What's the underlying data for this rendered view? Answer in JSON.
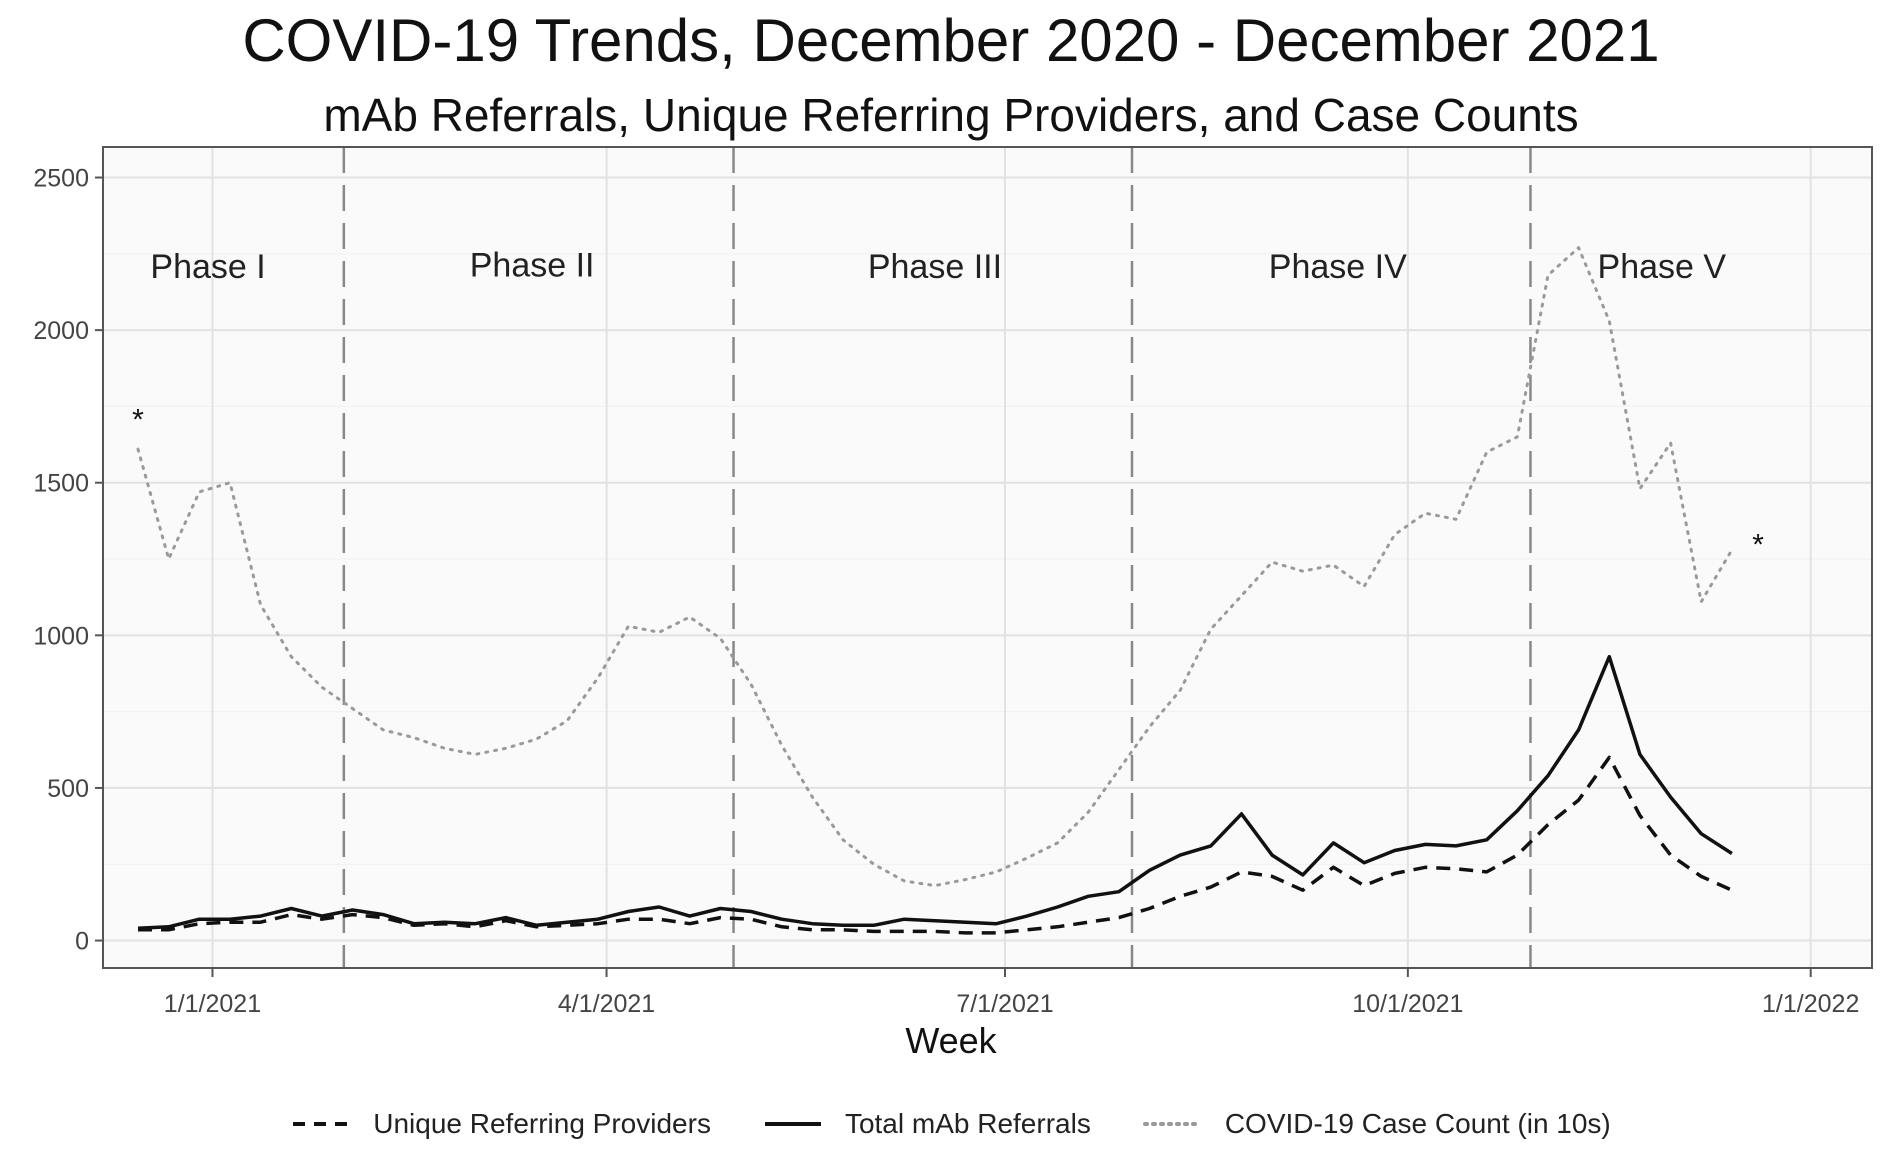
{
  "chart_data": {
    "type": "line",
    "title": "COVID-19 Trends, December 2020 - December 2021",
    "subtitle": "mAb Referrals, Unique Referring Providers, and Case Counts",
    "xlabel": "Week",
    "ylabel": "",
    "x_ticks": [
      "1/1/2021",
      "4/1/2021",
      "7/1/2021",
      "10/1/2021",
      "1/1/2022"
    ],
    "y_ticks": [
      "0",
      "500",
      "1000",
      "1500",
      "2000",
      "2500"
    ],
    "ylim": [
      -90,
      2600
    ],
    "x_start": "2020-12-07",
    "x_end": "2022-01-15",
    "phase_boundaries": [
      "2021-01-31",
      "2021-04-30",
      "2021-07-30",
      "2021-10-29"
    ],
    "phases": [
      {
        "label": "Phase I",
        "center": "2020-12-31",
        "y": 2210
      },
      {
        "label": "Phase II",
        "center": "2021-03-15",
        "y": 2215
      },
      {
        "label": "Phase III",
        "center": "2021-06-15",
        "y": 2210
      },
      {
        "label": "Phase IV",
        "center": "2021-09-15",
        "y": 2210
      },
      {
        "label": "Phase V",
        "center": "2021-11-28",
        "y": 2210
      }
    ],
    "markers": [
      {
        "label": "*",
        "date": "2020-12-15",
        "value": 1720
      },
      {
        "label": "*",
        "date": "2021-12-20",
        "value": 1310
      }
    ],
    "series": [
      {
        "name": "Unique Referring Providers",
        "style": "dashed",
        "color": "#111111",
        "points": [
          [
            "2020-12-15",
            35
          ],
          [
            "2020-12-22",
            35
          ],
          [
            "2020-12-29",
            55
          ],
          [
            "2021-01-05",
            60
          ],
          [
            "2021-01-12",
            60
          ],
          [
            "2021-01-19",
            85
          ],
          [
            "2021-01-26",
            70
          ],
          [
            "2021-02-02",
            85
          ],
          [
            "2021-02-09",
            75
          ],
          [
            "2021-02-16",
            50
          ],
          [
            "2021-02-23",
            55
          ],
          [
            "2021-03-02",
            45
          ],
          [
            "2021-03-09",
            65
          ],
          [
            "2021-03-16",
            45
          ],
          [
            "2021-03-23",
            50
          ],
          [
            "2021-03-30",
            55
          ],
          [
            "2021-04-06",
            70
          ],
          [
            "2021-04-13",
            70
          ],
          [
            "2021-04-20",
            55
          ],
          [
            "2021-04-27",
            75
          ],
          [
            "2021-05-04",
            70
          ],
          [
            "2021-05-11",
            45
          ],
          [
            "2021-05-18",
            35
          ],
          [
            "2021-05-25",
            35
          ],
          [
            "2021-06-01",
            30
          ],
          [
            "2021-06-08",
            30
          ],
          [
            "2021-06-15",
            30
          ],
          [
            "2021-06-22",
            25
          ],
          [
            "2021-06-29",
            25
          ],
          [
            "2021-07-06",
            35
          ],
          [
            "2021-07-13",
            45
          ],
          [
            "2021-07-20",
            60
          ],
          [
            "2021-07-27",
            75
          ],
          [
            "2021-08-03",
            105
          ],
          [
            "2021-08-10",
            145
          ],
          [
            "2021-08-17",
            175
          ],
          [
            "2021-08-24",
            225
          ],
          [
            "2021-08-31",
            210
          ],
          [
            "2021-09-07",
            165
          ],
          [
            "2021-09-14",
            240
          ],
          [
            "2021-09-21",
            180
          ],
          [
            "2021-09-28",
            220
          ],
          [
            "2021-10-05",
            240
          ],
          [
            "2021-10-12",
            235
          ],
          [
            "2021-10-19",
            225
          ],
          [
            "2021-10-26",
            280
          ],
          [
            "2021-11-02",
            380
          ],
          [
            "2021-11-09",
            460
          ],
          [
            "2021-11-16",
            600
          ],
          [
            "2021-11-23",
            410
          ],
          [
            "2021-11-30",
            280
          ],
          [
            "2021-12-07",
            210
          ],
          [
            "2021-12-14",
            165
          ]
        ]
      },
      {
        "name": "Total mAb Referrals",
        "style": "solid",
        "color": "#111111",
        "points": [
          [
            "2020-12-15",
            40
          ],
          [
            "2020-12-22",
            45
          ],
          [
            "2020-12-29",
            70
          ],
          [
            "2021-01-05",
            70
          ],
          [
            "2021-01-12",
            80
          ],
          [
            "2021-01-19",
            105
          ],
          [
            "2021-01-26",
            80
          ],
          [
            "2021-02-02",
            100
          ],
          [
            "2021-02-09",
            85
          ],
          [
            "2021-02-16",
            55
          ],
          [
            "2021-02-23",
            60
          ],
          [
            "2021-03-02",
            55
          ],
          [
            "2021-03-09",
            75
          ],
          [
            "2021-03-16",
            50
          ],
          [
            "2021-03-23",
            60
          ],
          [
            "2021-03-30",
            70
          ],
          [
            "2021-04-06",
            95
          ],
          [
            "2021-04-13",
            110
          ],
          [
            "2021-04-20",
            80
          ],
          [
            "2021-04-27",
            105
          ],
          [
            "2021-05-04",
            95
          ],
          [
            "2021-05-11",
            70
          ],
          [
            "2021-05-18",
            55
          ],
          [
            "2021-05-25",
            50
          ],
          [
            "2021-06-01",
            50
          ],
          [
            "2021-06-08",
            70
          ],
          [
            "2021-06-15",
            65
          ],
          [
            "2021-06-22",
            60
          ],
          [
            "2021-06-29",
            55
          ],
          [
            "2021-07-06",
            80
          ],
          [
            "2021-07-13",
            110
          ],
          [
            "2021-07-20",
            145
          ],
          [
            "2021-07-27",
            160
          ],
          [
            "2021-08-03",
            230
          ],
          [
            "2021-08-10",
            280
          ],
          [
            "2021-08-17",
            310
          ],
          [
            "2021-08-24",
            415
          ],
          [
            "2021-08-31",
            280
          ],
          [
            "2021-09-07",
            215
          ],
          [
            "2021-09-14",
            320
          ],
          [
            "2021-09-21",
            255
          ],
          [
            "2021-09-28",
            295
          ],
          [
            "2021-10-05",
            315
          ],
          [
            "2021-10-12",
            310
          ],
          [
            "2021-10-19",
            330
          ],
          [
            "2021-10-26",
            425
          ],
          [
            "2021-11-02",
            540
          ],
          [
            "2021-11-09",
            690
          ],
          [
            "2021-11-16",
            930
          ],
          [
            "2021-11-23",
            610
          ],
          [
            "2021-11-30",
            470
          ],
          [
            "2021-12-07",
            350
          ],
          [
            "2021-12-14",
            285
          ]
        ]
      },
      {
        "name": "COVID-19 Case Count (in 10s)",
        "style": "dotted",
        "color": "#9a9a9a",
        "points": [
          [
            "2020-12-15",
            1610
          ],
          [
            "2020-12-22",
            1250
          ],
          [
            "2020-12-29",
            1470
          ],
          [
            "2021-01-05",
            1500
          ],
          [
            "2021-01-12",
            1100
          ],
          [
            "2021-01-19",
            930
          ],
          [
            "2021-01-26",
            830
          ],
          [
            "2021-02-02",
            760
          ],
          [
            "2021-02-09",
            690
          ],
          [
            "2021-02-16",
            665
          ],
          [
            "2021-02-23",
            630
          ],
          [
            "2021-03-02",
            610
          ],
          [
            "2021-03-09",
            630
          ],
          [
            "2021-03-16",
            660
          ],
          [
            "2021-03-23",
            720
          ],
          [
            "2021-03-30",
            860
          ],
          [
            "2021-04-06",
            1030
          ],
          [
            "2021-04-13",
            1010
          ],
          [
            "2021-04-20",
            1060
          ],
          [
            "2021-04-27",
            990
          ],
          [
            "2021-05-04",
            840
          ],
          [
            "2021-05-11",
            640
          ],
          [
            "2021-05-18",
            470
          ],
          [
            "2021-05-25",
            330
          ],
          [
            "2021-06-01",
            250
          ],
          [
            "2021-06-08",
            195
          ],
          [
            "2021-06-15",
            180
          ],
          [
            "2021-06-22",
            200
          ],
          [
            "2021-06-29",
            225
          ],
          [
            "2021-07-06",
            270
          ],
          [
            "2021-07-13",
            320
          ],
          [
            "2021-07-20",
            420
          ],
          [
            "2021-07-27",
            560
          ],
          [
            "2021-08-03",
            700
          ],
          [
            "2021-08-10",
            820
          ],
          [
            "2021-08-17",
            1020
          ],
          [
            "2021-08-24",
            1130
          ],
          [
            "2021-08-31",
            1240
          ],
          [
            "2021-09-07",
            1210
          ],
          [
            "2021-09-14",
            1230
          ],
          [
            "2021-09-21",
            1160
          ],
          [
            "2021-09-28",
            1330
          ],
          [
            "2021-10-05",
            1400
          ],
          [
            "2021-10-12",
            1380
          ],
          [
            "2021-10-19",
            1600
          ],
          [
            "2021-10-26",
            1650
          ],
          [
            "2021-11-02",
            2180
          ],
          [
            "2021-11-09",
            2270
          ],
          [
            "2021-11-16",
            2030
          ],
          [
            "2021-11-23",
            1480
          ],
          [
            "2021-11-30",
            1630
          ],
          [
            "2021-12-07",
            1110
          ],
          [
            "2021-12-14",
            1280
          ]
        ]
      }
    ],
    "legend_position": "bottom"
  }
}
